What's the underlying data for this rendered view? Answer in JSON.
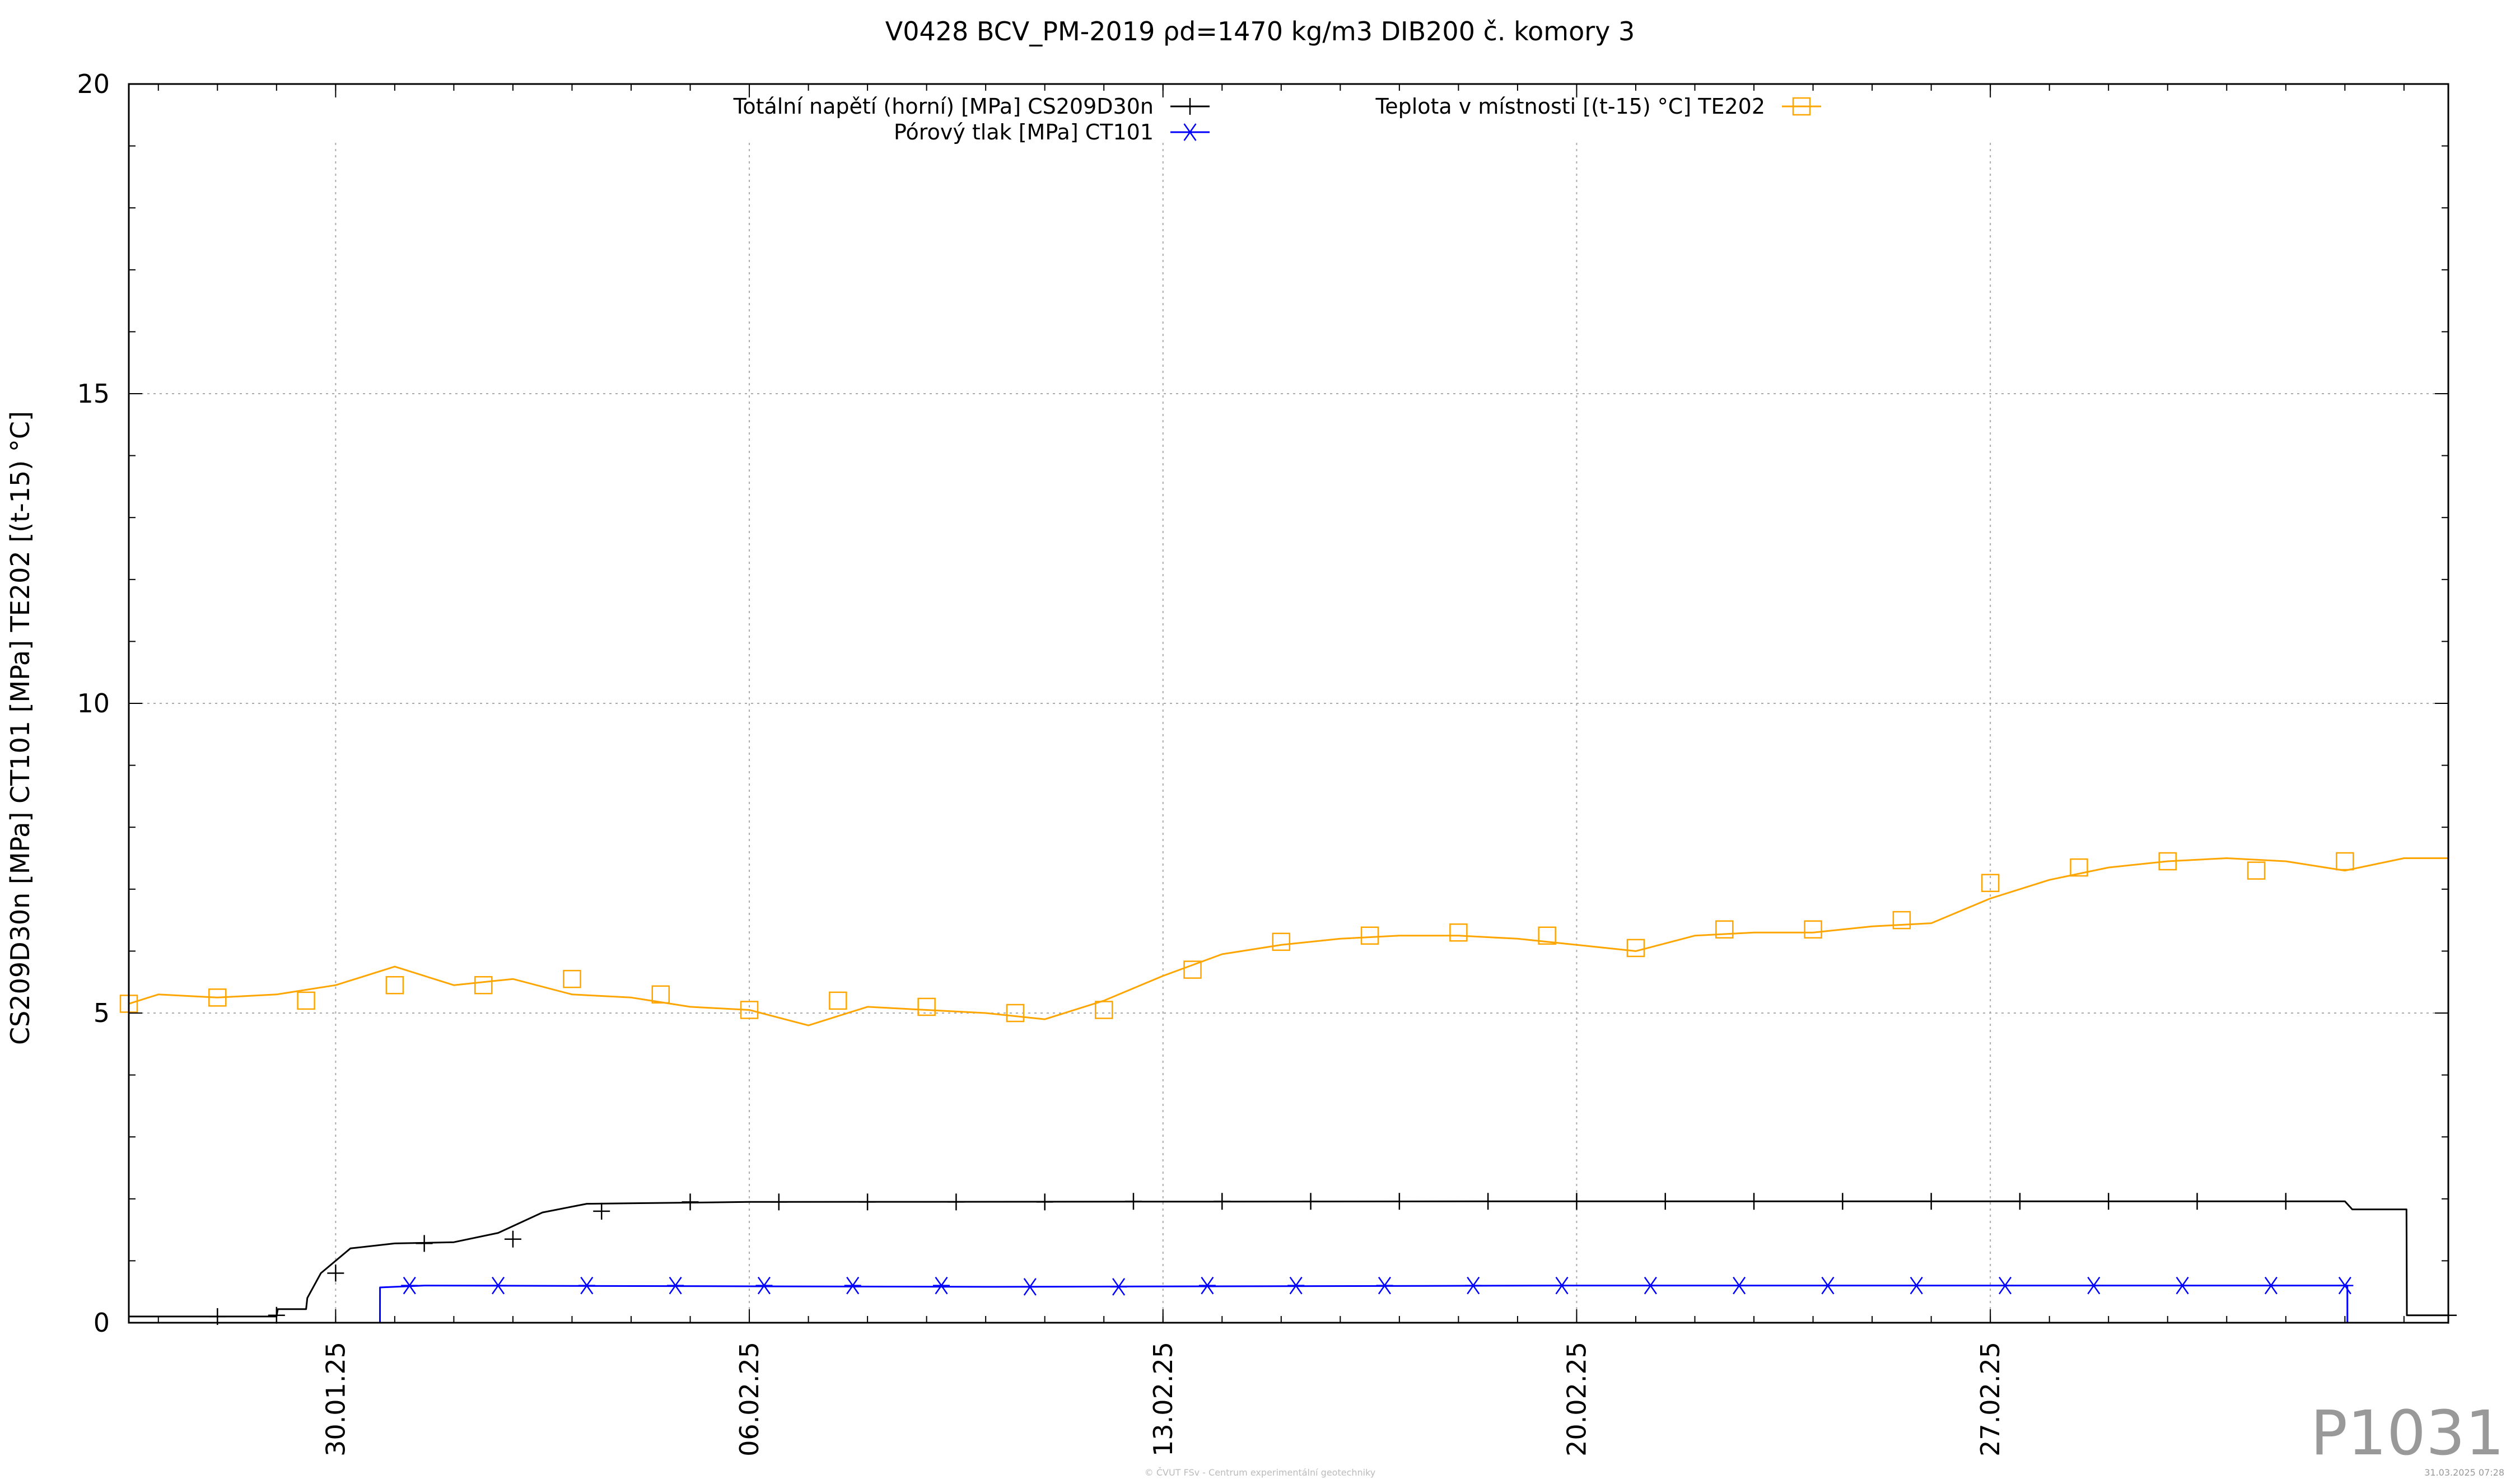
{
  "chart_data": {
    "type": "line",
    "title": "V0428 BCV_PM-2019 ρd=1470 kg/m3 DIB200 č. komory 3",
    "xlabel": "",
    "ylabel": "CS209D30n [MPa] CT101 [MPa] TE202 [(t-15) °C]",
    "ylim": [
      0,
      20
    ],
    "yticks": [
      "0",
      "5",
      "10",
      "15",
      "20"
    ],
    "xlim": [
      "2025-01-26 12:00",
      "2025-03-06 18:00"
    ],
    "xticks": [
      "30.01.25",
      "06.02.25",
      "13.02.25",
      "20.02.25",
      "27.02.25"
    ],
    "grid": true,
    "legend_placement": "top",
    "series": [
      {
        "name": "Totální napětí (horní) [MPa] CS209D30n",
        "color": "#000000",
        "marker": "plus",
        "points": [
          [
            "2025-01-26 12:00",
            0.1
          ],
          [
            "2025-01-29 00:00",
            0.1
          ],
          [
            "2025-01-29 00:30",
            0.22
          ],
          [
            "2025-01-29 12:00",
            0.22
          ],
          [
            "2025-01-29 12:30",
            0.4
          ],
          [
            "2025-01-29 18:00",
            0.8
          ],
          [
            "2025-01-30 06:00",
            1.2
          ],
          [
            "2025-01-31 00:00",
            1.28
          ],
          [
            "2025-02-01 00:00",
            1.3
          ],
          [
            "2025-02-01 18:00",
            1.45
          ],
          [
            "2025-02-02 12:00",
            1.78
          ],
          [
            "2025-02-03 06:00",
            1.92
          ],
          [
            "2025-02-06 00:00",
            1.95
          ],
          [
            "2025-02-20 00:00",
            1.96
          ],
          [
            "2025-03-05 00:00",
            1.96
          ],
          [
            "2025-03-05 03:00",
            1.83
          ],
          [
            "2025-03-06 01:00",
            1.83
          ],
          [
            "2025-03-06 01:10",
            0.12
          ],
          [
            "2025-03-06 18:00",
            0.12
          ]
        ],
        "marker_points": [
          [
            "2025-01-28 00:00",
            0.1
          ],
          [
            "2025-01-29 00:00",
            0.12
          ],
          [
            "2025-01-30 00:00",
            0.8
          ],
          [
            "2025-01-31 12:00",
            1.28
          ],
          [
            "2025-02-02 00:00",
            1.35
          ],
          [
            "2025-02-03 12:00",
            1.8
          ],
          [
            "2025-02-05 00:00",
            1.95
          ],
          [
            "2025-02-06 12:00",
            1.95
          ],
          [
            "2025-02-08 00:00",
            1.95
          ],
          [
            "2025-02-09 12:00",
            1.95
          ],
          [
            "2025-02-11 00:00",
            1.95
          ],
          [
            "2025-02-12 12:00",
            1.96
          ],
          [
            "2025-02-14 00:00",
            1.96
          ],
          [
            "2025-02-15 12:00",
            1.96
          ],
          [
            "2025-02-17 00:00",
            1.96
          ],
          [
            "2025-02-18 12:00",
            1.96
          ],
          [
            "2025-02-20 00:00",
            1.96
          ],
          [
            "2025-02-21 12:00",
            1.96
          ],
          [
            "2025-02-23 00:00",
            1.96
          ],
          [
            "2025-02-24 12:00",
            1.96
          ],
          [
            "2025-02-26 00:00",
            1.96
          ],
          [
            "2025-02-27 12:00",
            1.96
          ],
          [
            "2025-03-01 00:00",
            1.96
          ],
          [
            "2025-03-02 12:00",
            1.96
          ],
          [
            "2025-03-04 00:00",
            1.96
          ],
          [
            "2025-03-06 18:00",
            0.12
          ]
        ]
      },
      {
        "name": "Pórový tlak [MPa] CT101",
        "color": "#0000ff",
        "marker": "asterisk",
        "points": [
          [
            "2025-01-30 18:00",
            0.0
          ],
          [
            "2025-01-30 18:01",
            0.57
          ],
          [
            "2025-01-31 12:00",
            0.6
          ],
          [
            "2025-02-10 00:00",
            0.58
          ],
          [
            "2025-02-20 00:00",
            0.6
          ],
          [
            "2025-03-05 00:00",
            0.6
          ],
          [
            "2025-03-05 01:00",
            0.6
          ],
          [
            "2025-03-05 01:01",
            0.0
          ]
        ],
        "marker_points": [
          [
            "2025-01-31 06:00",
            0.6
          ],
          [
            "2025-02-01 18:00",
            0.6
          ],
          [
            "2025-02-03 06:00",
            0.6
          ],
          [
            "2025-02-04 18:00",
            0.6
          ],
          [
            "2025-02-06 06:00",
            0.6
          ],
          [
            "2025-02-07 18:00",
            0.6
          ],
          [
            "2025-02-09 06:00",
            0.6
          ],
          [
            "2025-02-10 18:00",
            0.58
          ],
          [
            "2025-02-12 06:00",
            0.58
          ],
          [
            "2025-02-13 18:00",
            0.6
          ],
          [
            "2025-02-15 06:00",
            0.6
          ],
          [
            "2025-02-16 18:00",
            0.6
          ],
          [
            "2025-02-18 06:00",
            0.6
          ],
          [
            "2025-02-19 18:00",
            0.6
          ],
          [
            "2025-02-21 06:00",
            0.6
          ],
          [
            "2025-02-22 18:00",
            0.6
          ],
          [
            "2025-02-24 06:00",
            0.6
          ],
          [
            "2025-02-25 18:00",
            0.6
          ],
          [
            "2025-02-27 06:00",
            0.6
          ],
          [
            "2025-02-28 18:00",
            0.6
          ],
          [
            "2025-03-02 06:00",
            0.6
          ],
          [
            "2025-03-03 18:00",
            0.6
          ],
          [
            "2025-03-05 00:00",
            0.6
          ]
        ]
      },
      {
        "name": "Teplota v místnosti [(t-15) °C] TE202",
        "color": "#ffa500",
        "marker": "square",
        "points": [
          [
            "2025-01-26 12:00",
            5.15
          ],
          [
            "2025-01-27 00:00",
            5.3
          ],
          [
            "2025-01-28 00:00",
            5.25
          ],
          [
            "2025-01-29 00:00",
            5.3
          ],
          [
            "2025-01-30 00:00",
            5.45
          ],
          [
            "2025-01-31 00:00",
            5.75
          ],
          [
            "2025-02-01 00:00",
            5.45
          ],
          [
            "2025-02-02 00:00",
            5.55
          ],
          [
            "2025-02-03 00:00",
            5.3
          ],
          [
            "2025-02-04 00:00",
            5.25
          ],
          [
            "2025-02-05 00:00",
            5.1
          ],
          [
            "2025-02-06 00:00",
            5.05
          ],
          [
            "2025-02-07 00:00",
            4.8
          ],
          [
            "2025-02-08 00:00",
            5.1
          ],
          [
            "2025-02-09 00:00",
            5.05
          ],
          [
            "2025-02-10 00:00",
            5.0
          ],
          [
            "2025-02-11 00:00",
            4.9
          ],
          [
            "2025-02-12 00:00",
            5.2
          ],
          [
            "2025-02-13 00:00",
            5.6
          ],
          [
            "2025-02-14 00:00",
            5.95
          ],
          [
            "2025-02-15 00:00",
            6.1
          ],
          [
            "2025-02-16 00:00",
            6.2
          ],
          [
            "2025-02-17 00:00",
            6.25
          ],
          [
            "2025-02-18 00:00",
            6.25
          ],
          [
            "2025-02-19 00:00",
            6.2
          ],
          [
            "2025-02-20 00:00",
            6.1
          ],
          [
            "2025-02-21 00:00",
            6.0
          ],
          [
            "2025-02-22 00:00",
            6.25
          ],
          [
            "2025-02-23 00:00",
            6.3
          ],
          [
            "2025-02-24 00:00",
            6.3
          ],
          [
            "2025-02-25 00:00",
            6.4
          ],
          [
            "2025-02-26 00:00",
            6.45
          ],
          [
            "2025-02-27 00:00",
            6.85
          ],
          [
            "2025-02-28 00:00",
            7.15
          ],
          [
            "2025-03-01 00:00",
            7.35
          ],
          [
            "2025-03-02 00:00",
            7.45
          ],
          [
            "2025-03-03 00:00",
            7.5
          ],
          [
            "2025-03-04 00:00",
            7.45
          ],
          [
            "2025-03-05 00:00",
            7.3
          ],
          [
            "2025-03-06 00:00",
            7.5
          ],
          [
            "2025-03-06 18:00",
            7.5
          ]
        ],
        "marker_points": [
          [
            "2025-01-26 12:00",
            5.15
          ],
          [
            "2025-01-28 00:00",
            5.25
          ],
          [
            "2025-01-29 12:00",
            5.2
          ],
          [
            "2025-01-31 00:00",
            5.45
          ],
          [
            "2025-02-01 12:00",
            5.45
          ],
          [
            "2025-02-03 00:00",
            5.55
          ],
          [
            "2025-02-04 12:00",
            5.3
          ],
          [
            "2025-02-06 00:00",
            5.05
          ],
          [
            "2025-02-07 12:00",
            5.2
          ],
          [
            "2025-02-09 00:00",
            5.1
          ],
          [
            "2025-02-10 12:00",
            5.0
          ],
          [
            "2025-02-12 00:00",
            5.05
          ],
          [
            "2025-02-13 12:00",
            5.7
          ],
          [
            "2025-02-15 00:00",
            6.15
          ],
          [
            "2025-02-16 12:00",
            6.25
          ],
          [
            "2025-02-18 00:00",
            6.3
          ],
          [
            "2025-02-19 12:00",
            6.25
          ],
          [
            "2025-02-21 00:00",
            6.05
          ],
          [
            "2025-02-22 12:00",
            6.35
          ],
          [
            "2025-02-24 00:00",
            6.35
          ],
          [
            "2025-02-25 12:00",
            6.5
          ],
          [
            "2025-02-27 00:00",
            7.1
          ],
          [
            "2025-02-28 12:00",
            7.35
          ],
          [
            "2025-03-02 00:00",
            7.45
          ],
          [
            "2025-03-03 12:00",
            7.3
          ],
          [
            "2025-03-05 00:00",
            7.45
          ]
        ]
      }
    ]
  },
  "watermark": "P1031",
  "footer_center": "© ČVUT FSv - Centrum experimentální geotechniky",
  "footer_right": "31.03.2025 07:28"
}
